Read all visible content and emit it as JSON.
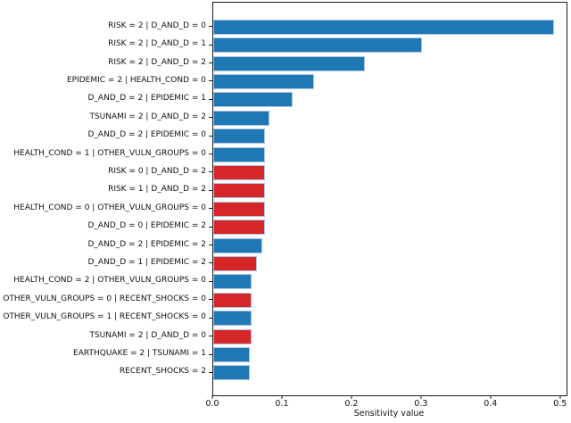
{
  "chart_data": {
    "type": "bar",
    "orientation": "horizontal",
    "title": "",
    "xlabel": "Sensitivity value",
    "ylabel": "",
    "xlim": [
      0.0,
      0.508
    ],
    "grid": false,
    "legend": null,
    "xticks": [
      {
        "value": 0.0,
        "label": "0.0"
      },
      {
        "value": 0.1,
        "label": "0.1"
      },
      {
        "value": 0.2,
        "label": "0.2"
      },
      {
        "value": 0.3,
        "label": "0.3"
      },
      {
        "value": 0.4,
        "label": "0.4"
      },
      {
        "value": 0.5,
        "label": "0.5"
      }
    ],
    "colors": {
      "blue": "#1f77b4",
      "red": "#d62728",
      "bar_edge": "#aec7e8",
      "axis": "#1a1a1a"
    },
    "bars": [
      {
        "label": "RISK = 2 | D_AND_D = 0",
        "value": 0.49,
        "color": "blue"
      },
      {
        "label": "RISK = 2 | D_AND_D = 1",
        "value": 0.3,
        "color": "blue"
      },
      {
        "label": "RISK = 2 | D_AND_D = 2",
        "value": 0.218,
        "color": "blue"
      },
      {
        "label": "EPIDEMIC = 2 | HEALTH_COND = 0",
        "value": 0.145,
        "color": "blue"
      },
      {
        "label": "D_AND_D = 2 | EPIDEMIC = 1",
        "value": 0.114,
        "color": "blue"
      },
      {
        "label": "TSUNAMI = 2 | D_AND_D = 2",
        "value": 0.081,
        "color": "blue"
      },
      {
        "label": "D_AND_D = 2 | EPIDEMIC = 0",
        "value": 0.075,
        "color": "blue"
      },
      {
        "label": "HEALTH_COND = 1 | OTHER_VULN_GROUPS = 0",
        "value": 0.075,
        "color": "blue"
      },
      {
        "label": "RISK = 0 | D_AND_D = 2",
        "value": 0.074,
        "color": "red"
      },
      {
        "label": "RISK = 1 | D_AND_D = 2",
        "value": 0.074,
        "color": "red"
      },
      {
        "label": "HEALTH_COND = 0 | OTHER_VULN_GROUPS = 0",
        "value": 0.074,
        "color": "red"
      },
      {
        "label": "D_AND_D = 0 | EPIDEMIC = 2",
        "value": 0.075,
        "color": "red"
      },
      {
        "label": "D_AND_D = 2 | EPIDEMIC = 2",
        "value": 0.07,
        "color": "blue"
      },
      {
        "label": "D_AND_D = 1 | EPIDEMIC = 2",
        "value": 0.063,
        "color": "red"
      },
      {
        "label": "HEALTH_COND = 2 | OTHER_VULN_GROUPS = 0",
        "value": 0.055,
        "color": "blue"
      },
      {
        "label": "OTHER_VULN_GROUPS = 0 | RECENT_SHOCKS = 0",
        "value": 0.055,
        "color": "red"
      },
      {
        "label": "OTHER_VULN_GROUPS = 1 | RECENT_SHOCKS = 0",
        "value": 0.055,
        "color": "blue"
      },
      {
        "label": "TSUNAMI = 2 | D_AND_D = 0",
        "value": 0.055,
        "color": "red"
      },
      {
        "label": "EARTHQUAKE = 2 | TSUNAMI = 1",
        "value": 0.053,
        "color": "blue"
      },
      {
        "label": "RECENT_SHOCKS = 2",
        "value": 0.052,
        "color": "blue"
      }
    ]
  }
}
